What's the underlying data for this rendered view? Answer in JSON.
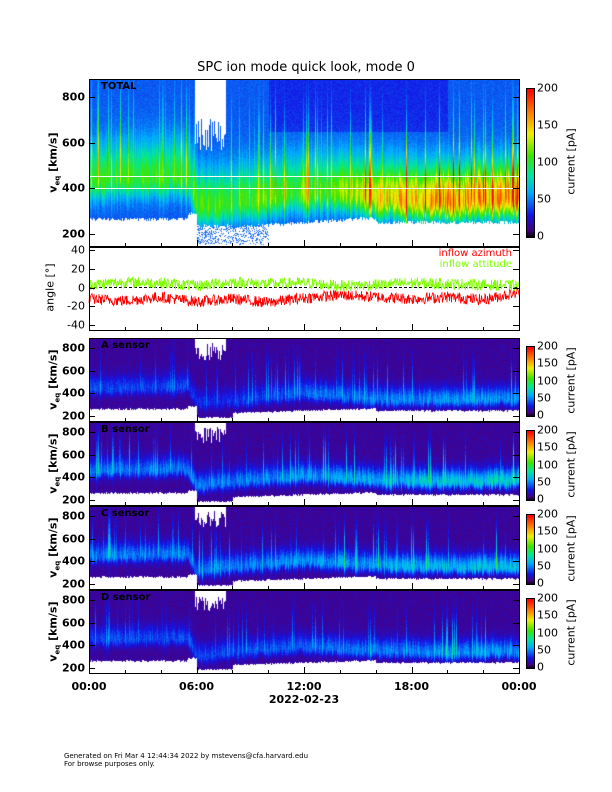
{
  "title": "SPC ion mode quick look, mode 0",
  "x_axis": {
    "tick_labels": [
      "00:00",
      "06:00",
      "12:00",
      "18:00",
      "00:00"
    ],
    "tick_hours": [
      0,
      6,
      12,
      18,
      24
    ],
    "date_label": "2022-02-23"
  },
  "footer": {
    "line1": "Generated on Fri Mar  4 12:44:34 2022 by mstevens@cfa.harvard.edu",
    "line2": "For browse purposes only."
  },
  "chart_data": [
    {
      "type": "heatmap",
      "name": "TOTAL",
      "panel_label": "TOTAL",
      "ylabel": "v_eq [km/s]",
      "ylabel_main": "v",
      "ylabel_sub": "eq",
      "ylabel_unit": " [km/s]",
      "ylim": [
        145,
        880
      ],
      "yticks": [
        200,
        400,
        600,
        800
      ],
      "colorbar": {
        "label": "current [pA]",
        "range": [
          0,
          200
        ],
        "ticks": [
          0,
          50,
          100,
          150,
          200
        ]
      },
      "reference_lines_kms": [
        400,
        455
      ],
      "hours": [
        0,
        2,
        4,
        5.5,
        6,
        7,
        8,
        10,
        12,
        14,
        16,
        18,
        20,
        22,
        24
      ],
      "peak_velocity_kms": [
        430,
        440,
        440,
        445,
        330,
        320,
        330,
        360,
        380,
        385,
        360,
        345,
        345,
        350,
        350
      ],
      "peak_current_pa": [
        55,
        60,
        60,
        55,
        70,
        65,
        60,
        65,
        70,
        70,
        100,
        110,
        115,
        120,
        120
      ]
    },
    {
      "type": "line",
      "name": "angle",
      "ylabel": "angle [°]",
      "ylim": [
        -45,
        43
      ],
      "yticks": [
        -40,
        -20,
        0,
        20,
        40
      ],
      "series": [
        {
          "name": "inflow azimuth",
          "color": "#ff0000",
          "hours": [
            0,
            2,
            4,
            6,
            8,
            10,
            12,
            14,
            16,
            18,
            20,
            22,
            24
          ],
          "values": [
            -12,
            -14,
            -10,
            -15,
            -12,
            -16,
            -11,
            -8,
            -10,
            -12,
            -10,
            -13,
            -5
          ]
        },
        {
          "name": "inflow attitude",
          "color": "#7fff00",
          "hours": [
            0,
            2,
            4,
            6,
            8,
            10,
            12,
            14,
            16,
            18,
            20,
            22,
            24
          ],
          "values": [
            3,
            6,
            5,
            2,
            6,
            4,
            5,
            2,
            3,
            5,
            4,
            3,
            2
          ]
        }
      ]
    },
    {
      "type": "heatmap",
      "name": "A sensor",
      "panel_label": "A sensor",
      "ylabel_main": "v",
      "ylabel_sub": "eq",
      "ylabel_unit": " [km/s]",
      "ylim": [
        155,
        890
      ],
      "yticks": [
        200,
        400,
        600,
        800
      ],
      "colorbar": {
        "label": "current [pA]",
        "range": [
          0,
          200
        ],
        "ticks": [
          0,
          50,
          100,
          150,
          200
        ]
      },
      "hours": [
        0,
        5.5,
        6,
        8,
        12,
        16,
        20,
        24
      ],
      "peak_velocity_kms": [
        440,
        460,
        320,
        330,
        400,
        350,
        340,
        350
      ],
      "peak_current_pa": [
        25,
        25,
        20,
        20,
        30,
        35,
        40,
        40
      ]
    },
    {
      "type": "heatmap",
      "name": "B sensor",
      "panel_label": "B sensor",
      "ylabel_main": "v",
      "ylabel_sub": "eq",
      "ylabel_unit": " [km/s]",
      "ylim": [
        155,
        890
      ],
      "yticks": [
        200,
        400,
        600,
        800
      ],
      "colorbar": {
        "label": "current [pA]",
        "range": [
          0,
          200
        ],
        "ticks": [
          0,
          50,
          100,
          150,
          200
        ]
      },
      "hours": [
        0,
        5.5,
        6,
        8,
        12,
        16,
        20,
        24
      ],
      "peak_velocity_kms": [
        460,
        470,
        320,
        360,
        410,
        370,
        360,
        370
      ],
      "peak_current_pa": [
        35,
        35,
        35,
        35,
        40,
        45,
        55,
        60
      ]
    },
    {
      "type": "heatmap",
      "name": "C sensor",
      "panel_label": "C sensor",
      "ylabel_main": "v",
      "ylabel_sub": "eq",
      "ylabel_unit": " [km/s]",
      "ylim": [
        155,
        890
      ],
      "yticks": [
        200,
        400,
        600,
        800
      ],
      "colorbar": {
        "label": "current [pA]",
        "range": [
          0,
          200
        ],
        "ticks": [
          0,
          50,
          100,
          150,
          200
        ]
      },
      "hours": [
        0,
        5.5,
        6,
        8,
        12,
        16,
        20,
        24
      ],
      "peak_velocity_kms": [
        450,
        460,
        310,
        350,
        400,
        360,
        350,
        350
      ],
      "peak_current_pa": [
        35,
        35,
        35,
        35,
        40,
        45,
        50,
        55
      ]
    },
    {
      "type": "heatmap",
      "name": "D sensor",
      "panel_label": "D sensor",
      "ylabel_main": "v",
      "ylabel_sub": "eq",
      "ylabel_unit": " [km/s]",
      "ylim": [
        155,
        890
      ],
      "yticks": [
        200,
        400,
        600,
        800
      ],
      "colorbar": {
        "label": "current [pA]",
        "range": [
          0,
          200
        ],
        "ticks": [
          0,
          50,
          100,
          150,
          200
        ]
      },
      "hours": [
        0,
        5.5,
        6,
        8,
        12,
        16,
        20,
        24
      ],
      "peak_velocity_kms": [
        450,
        460,
        300,
        340,
        390,
        350,
        340,
        340
      ],
      "peak_current_pa": [
        25,
        25,
        25,
        25,
        30,
        35,
        40,
        40
      ]
    }
  ]
}
